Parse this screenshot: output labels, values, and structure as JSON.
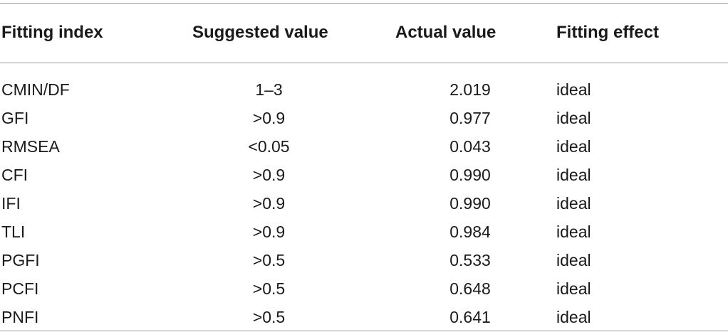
{
  "table": {
    "headers": {
      "fitting_index": "Fitting index",
      "suggested_value": "Suggested value",
      "actual_value": "Actual value",
      "fitting_effect": "Fitting effect"
    },
    "rows": [
      {
        "fitting_index": "CMIN/DF",
        "suggested_value": "1–3",
        "actual_value": "2.019",
        "fitting_effect": "ideal"
      },
      {
        "fitting_index": "GFI",
        "suggested_value": ">0.9",
        "actual_value": "0.977",
        "fitting_effect": "ideal"
      },
      {
        "fitting_index": "RMSEA",
        "suggested_value": "<0.05",
        "actual_value": "0.043",
        "fitting_effect": "ideal"
      },
      {
        "fitting_index": "CFI",
        "suggested_value": ">0.9",
        "actual_value": "0.990",
        "fitting_effect": "ideal"
      },
      {
        "fitting_index": "IFI",
        "suggested_value": ">0.9",
        "actual_value": "0.990",
        "fitting_effect": "ideal"
      },
      {
        "fitting_index": "TLI",
        "suggested_value": ">0.9",
        "actual_value": "0.984",
        "fitting_effect": "ideal"
      },
      {
        "fitting_index": "PGFI",
        "suggested_value": ">0.5",
        "actual_value": "0.533",
        "fitting_effect": "ideal"
      },
      {
        "fitting_index": "PCFI",
        "suggested_value": ">0.5",
        "actual_value": "0.648",
        "fitting_effect": "ideal"
      },
      {
        "fitting_index": "PNFI",
        "suggested_value": ">0.5",
        "actual_value": "0.641",
        "fitting_effect": "ideal"
      }
    ]
  }
}
